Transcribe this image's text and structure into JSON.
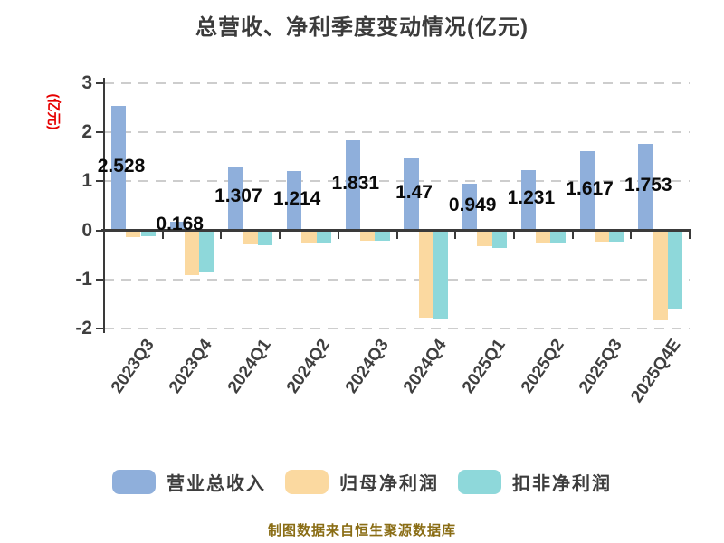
{
  "title": "总营收、净利季度变动情况(亿元)",
  "ylabel": "(亿元)",
  "footer": "制图数据来自恒生聚源数据库",
  "legend": [
    {
      "label": "营业总收入",
      "color": "#8fafdb"
    },
    {
      "label": "归母净利润",
      "color": "#fbd9a0"
    },
    {
      "label": "扣非净利润",
      "color": "#8ed8da"
    }
  ],
  "colors": {
    "background": "#ffffff",
    "title": "#3b3b3b",
    "axis": "#3a3a3a",
    "tick_label": "#3f3f3f",
    "gridline": "#cdcdcd",
    "ylabel": "#e60000",
    "value_label": "#0a0a0a",
    "footer": "#8a6d15"
  },
  "chart_data": {
    "type": "bar",
    "title": "总营收、净利季度变动情况(亿元)",
    "ylabel": "(亿元)",
    "categories": [
      "2023Q3",
      "2023Q4",
      "2024Q1",
      "2024Q2",
      "2024Q3",
      "2024Q4",
      "2025Q1",
      "2025Q2",
      "2025Q3",
      "2025Q4E"
    ],
    "series": [
      {
        "name": "营业总收入",
        "color": "#8fafdb",
        "values": [
          2.528,
          0.168,
          1.307,
          1.214,
          1.831,
          1.47,
          0.949,
          1.231,
          1.617,
          1.753
        ]
      },
      {
        "name": "归母净利润",
        "color": "#fbd9a0",
        "values": [
          -0.14,
          -0.91,
          -0.28,
          -0.25,
          -0.22,
          -1.77,
          -0.32,
          -0.24,
          -0.23,
          -1.84
        ]
      },
      {
        "name": "扣非净利润",
        "color": "#8ed8da",
        "values": [
          -0.12,
          -0.85,
          -0.3,
          -0.27,
          -0.22,
          -1.8,
          -0.35,
          -0.24,
          -0.23,
          -1.6
        ]
      }
    ],
    "value_labels": [
      "2.528",
      "0.168",
      "1.307",
      "1.214",
      "1.831",
      "1.47",
      "0.949",
      "1.231",
      "1.617",
      "1.753"
    ],
    "value_labels_series": "营业总收入",
    "yticks": [
      3,
      2,
      1,
      0,
      -1,
      -2
    ],
    "ylim": [
      -2,
      3
    ],
    "grid": "horizontal-dashed",
    "legend_position": "bottom"
  }
}
